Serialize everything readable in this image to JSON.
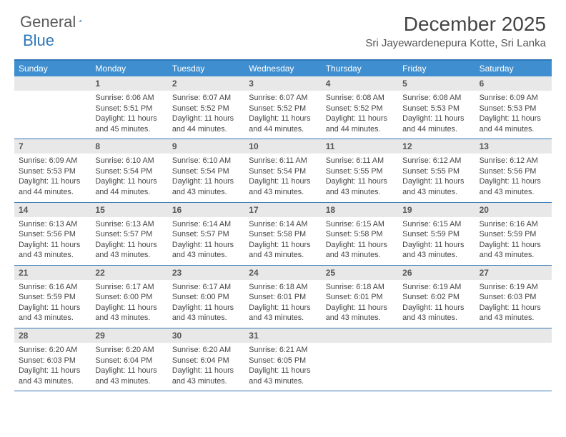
{
  "brand": {
    "part1": "General",
    "part2": "Blue"
  },
  "title": "December 2025",
  "location": "Sri Jayewardenepura Kotte, Sri Lanka",
  "style": {
    "accent": "#2f77b8",
    "header_bg": "#3f8fd0",
    "daynum_bg": "#e8e8e8",
    "text": "#444444",
    "page_bg": "#ffffff",
    "title_fontsize": 28,
    "location_fontsize": 15,
    "dow_fontsize": 12,
    "body_fontsize": 10.8
  },
  "days_of_week": [
    "Sunday",
    "Monday",
    "Tuesday",
    "Wednesday",
    "Thursday",
    "Friday",
    "Saturday"
  ],
  "weeks": [
    [
      {
        "n": "",
        "lines": []
      },
      {
        "n": "1",
        "lines": [
          "Sunrise: 6:06 AM",
          "Sunset: 5:51 PM",
          "Daylight: 11 hours and 45 minutes."
        ]
      },
      {
        "n": "2",
        "lines": [
          "Sunrise: 6:07 AM",
          "Sunset: 5:52 PM",
          "Daylight: 11 hours and 44 minutes."
        ]
      },
      {
        "n": "3",
        "lines": [
          "Sunrise: 6:07 AM",
          "Sunset: 5:52 PM",
          "Daylight: 11 hours and 44 minutes."
        ]
      },
      {
        "n": "4",
        "lines": [
          "Sunrise: 6:08 AM",
          "Sunset: 5:52 PM",
          "Daylight: 11 hours and 44 minutes."
        ]
      },
      {
        "n": "5",
        "lines": [
          "Sunrise: 6:08 AM",
          "Sunset: 5:53 PM",
          "Daylight: 11 hours and 44 minutes."
        ]
      },
      {
        "n": "6",
        "lines": [
          "Sunrise: 6:09 AM",
          "Sunset: 5:53 PM",
          "Daylight: 11 hours and 44 minutes."
        ]
      }
    ],
    [
      {
        "n": "7",
        "lines": [
          "Sunrise: 6:09 AM",
          "Sunset: 5:53 PM",
          "Daylight: 11 hours and 44 minutes."
        ]
      },
      {
        "n": "8",
        "lines": [
          "Sunrise: 6:10 AM",
          "Sunset: 5:54 PM",
          "Daylight: 11 hours and 44 minutes."
        ]
      },
      {
        "n": "9",
        "lines": [
          "Sunrise: 6:10 AM",
          "Sunset: 5:54 PM",
          "Daylight: 11 hours and 43 minutes."
        ]
      },
      {
        "n": "10",
        "lines": [
          "Sunrise: 6:11 AM",
          "Sunset: 5:54 PM",
          "Daylight: 11 hours and 43 minutes."
        ]
      },
      {
        "n": "11",
        "lines": [
          "Sunrise: 6:11 AM",
          "Sunset: 5:55 PM",
          "Daylight: 11 hours and 43 minutes."
        ]
      },
      {
        "n": "12",
        "lines": [
          "Sunrise: 6:12 AM",
          "Sunset: 5:55 PM",
          "Daylight: 11 hours and 43 minutes."
        ]
      },
      {
        "n": "13",
        "lines": [
          "Sunrise: 6:12 AM",
          "Sunset: 5:56 PM",
          "Daylight: 11 hours and 43 minutes."
        ]
      }
    ],
    [
      {
        "n": "14",
        "lines": [
          "Sunrise: 6:13 AM",
          "Sunset: 5:56 PM",
          "Daylight: 11 hours and 43 minutes."
        ]
      },
      {
        "n": "15",
        "lines": [
          "Sunrise: 6:13 AM",
          "Sunset: 5:57 PM",
          "Daylight: 11 hours and 43 minutes."
        ]
      },
      {
        "n": "16",
        "lines": [
          "Sunrise: 6:14 AM",
          "Sunset: 5:57 PM",
          "Daylight: 11 hours and 43 minutes."
        ]
      },
      {
        "n": "17",
        "lines": [
          "Sunrise: 6:14 AM",
          "Sunset: 5:58 PM",
          "Daylight: 11 hours and 43 minutes."
        ]
      },
      {
        "n": "18",
        "lines": [
          "Sunrise: 6:15 AM",
          "Sunset: 5:58 PM",
          "Daylight: 11 hours and 43 minutes."
        ]
      },
      {
        "n": "19",
        "lines": [
          "Sunrise: 6:15 AM",
          "Sunset: 5:59 PM",
          "Daylight: 11 hours and 43 minutes."
        ]
      },
      {
        "n": "20",
        "lines": [
          "Sunrise: 6:16 AM",
          "Sunset: 5:59 PM",
          "Daylight: 11 hours and 43 minutes."
        ]
      }
    ],
    [
      {
        "n": "21",
        "lines": [
          "Sunrise: 6:16 AM",
          "Sunset: 5:59 PM",
          "Daylight: 11 hours and 43 minutes."
        ]
      },
      {
        "n": "22",
        "lines": [
          "Sunrise: 6:17 AM",
          "Sunset: 6:00 PM",
          "Daylight: 11 hours and 43 minutes."
        ]
      },
      {
        "n": "23",
        "lines": [
          "Sunrise: 6:17 AM",
          "Sunset: 6:00 PM",
          "Daylight: 11 hours and 43 minutes."
        ]
      },
      {
        "n": "24",
        "lines": [
          "Sunrise: 6:18 AM",
          "Sunset: 6:01 PM",
          "Daylight: 11 hours and 43 minutes."
        ]
      },
      {
        "n": "25",
        "lines": [
          "Sunrise: 6:18 AM",
          "Sunset: 6:01 PM",
          "Daylight: 11 hours and 43 minutes."
        ]
      },
      {
        "n": "26",
        "lines": [
          "Sunrise: 6:19 AM",
          "Sunset: 6:02 PM",
          "Daylight: 11 hours and 43 minutes."
        ]
      },
      {
        "n": "27",
        "lines": [
          "Sunrise: 6:19 AM",
          "Sunset: 6:03 PM",
          "Daylight: 11 hours and 43 minutes."
        ]
      }
    ],
    [
      {
        "n": "28",
        "lines": [
          "Sunrise: 6:20 AM",
          "Sunset: 6:03 PM",
          "Daylight: 11 hours and 43 minutes."
        ]
      },
      {
        "n": "29",
        "lines": [
          "Sunrise: 6:20 AM",
          "Sunset: 6:04 PM",
          "Daylight: 11 hours and 43 minutes."
        ]
      },
      {
        "n": "30",
        "lines": [
          "Sunrise: 6:20 AM",
          "Sunset: 6:04 PM",
          "Daylight: 11 hours and 43 minutes."
        ]
      },
      {
        "n": "31",
        "lines": [
          "Sunrise: 6:21 AM",
          "Sunset: 6:05 PM",
          "Daylight: 11 hours and 43 minutes."
        ]
      },
      {
        "n": "",
        "lines": []
      },
      {
        "n": "",
        "lines": []
      },
      {
        "n": "",
        "lines": []
      }
    ]
  ]
}
